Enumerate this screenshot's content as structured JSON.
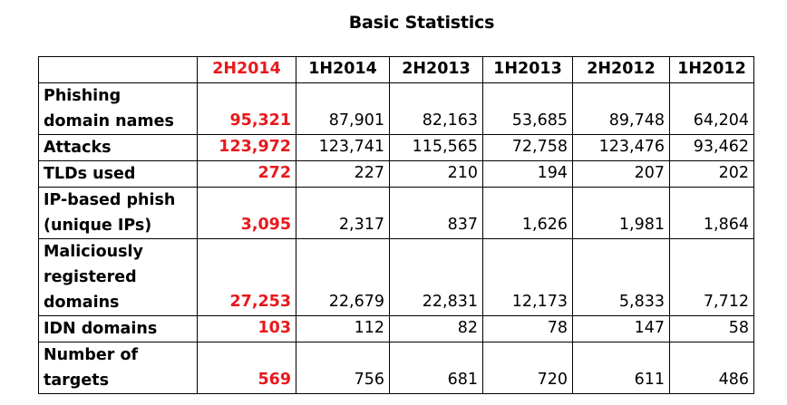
{
  "title": "Basic Statistics",
  "columns": [
    "",
    "2H2014",
    "1H2014",
    "2H2013",
    "1H2013",
    "2H2012",
    "1H2012"
  ],
  "highlight_color": "#e8191c",
  "rows": [
    {
      "label": "Phishing domain names",
      "values": [
        "95,321",
        "87,901",
        "82,163",
        "53,685",
        "89,748",
        "64,204"
      ]
    },
    {
      "label": "Attacks",
      "values": [
        "123,972",
        "123,741",
        "115,565",
        "72,758",
        "123,476",
        "93,462"
      ]
    },
    {
      "label": "TLDs used",
      "values": [
        "272",
        "227",
        "210",
        "194",
        "207",
        "202"
      ]
    },
    {
      "label": "IP-based phish (unique IPs)",
      "values": [
        "3,095",
        "2,317",
        "837",
        "1,626",
        "1,981",
        "1,864"
      ]
    },
    {
      "label": "Maliciously registered domains",
      "values": [
        "27,253",
        "22,679",
        "22,831",
        "12,173",
        "5,833",
        "7,712"
      ]
    },
    {
      "label": "IDN domains",
      "values": [
        "103",
        "112",
        "82",
        "78",
        "147",
        "58"
      ]
    },
    {
      "label": "Number of targets",
      "values": [
        "569",
        "756",
        "681",
        "720",
        "611",
        "486"
      ]
    }
  ]
}
